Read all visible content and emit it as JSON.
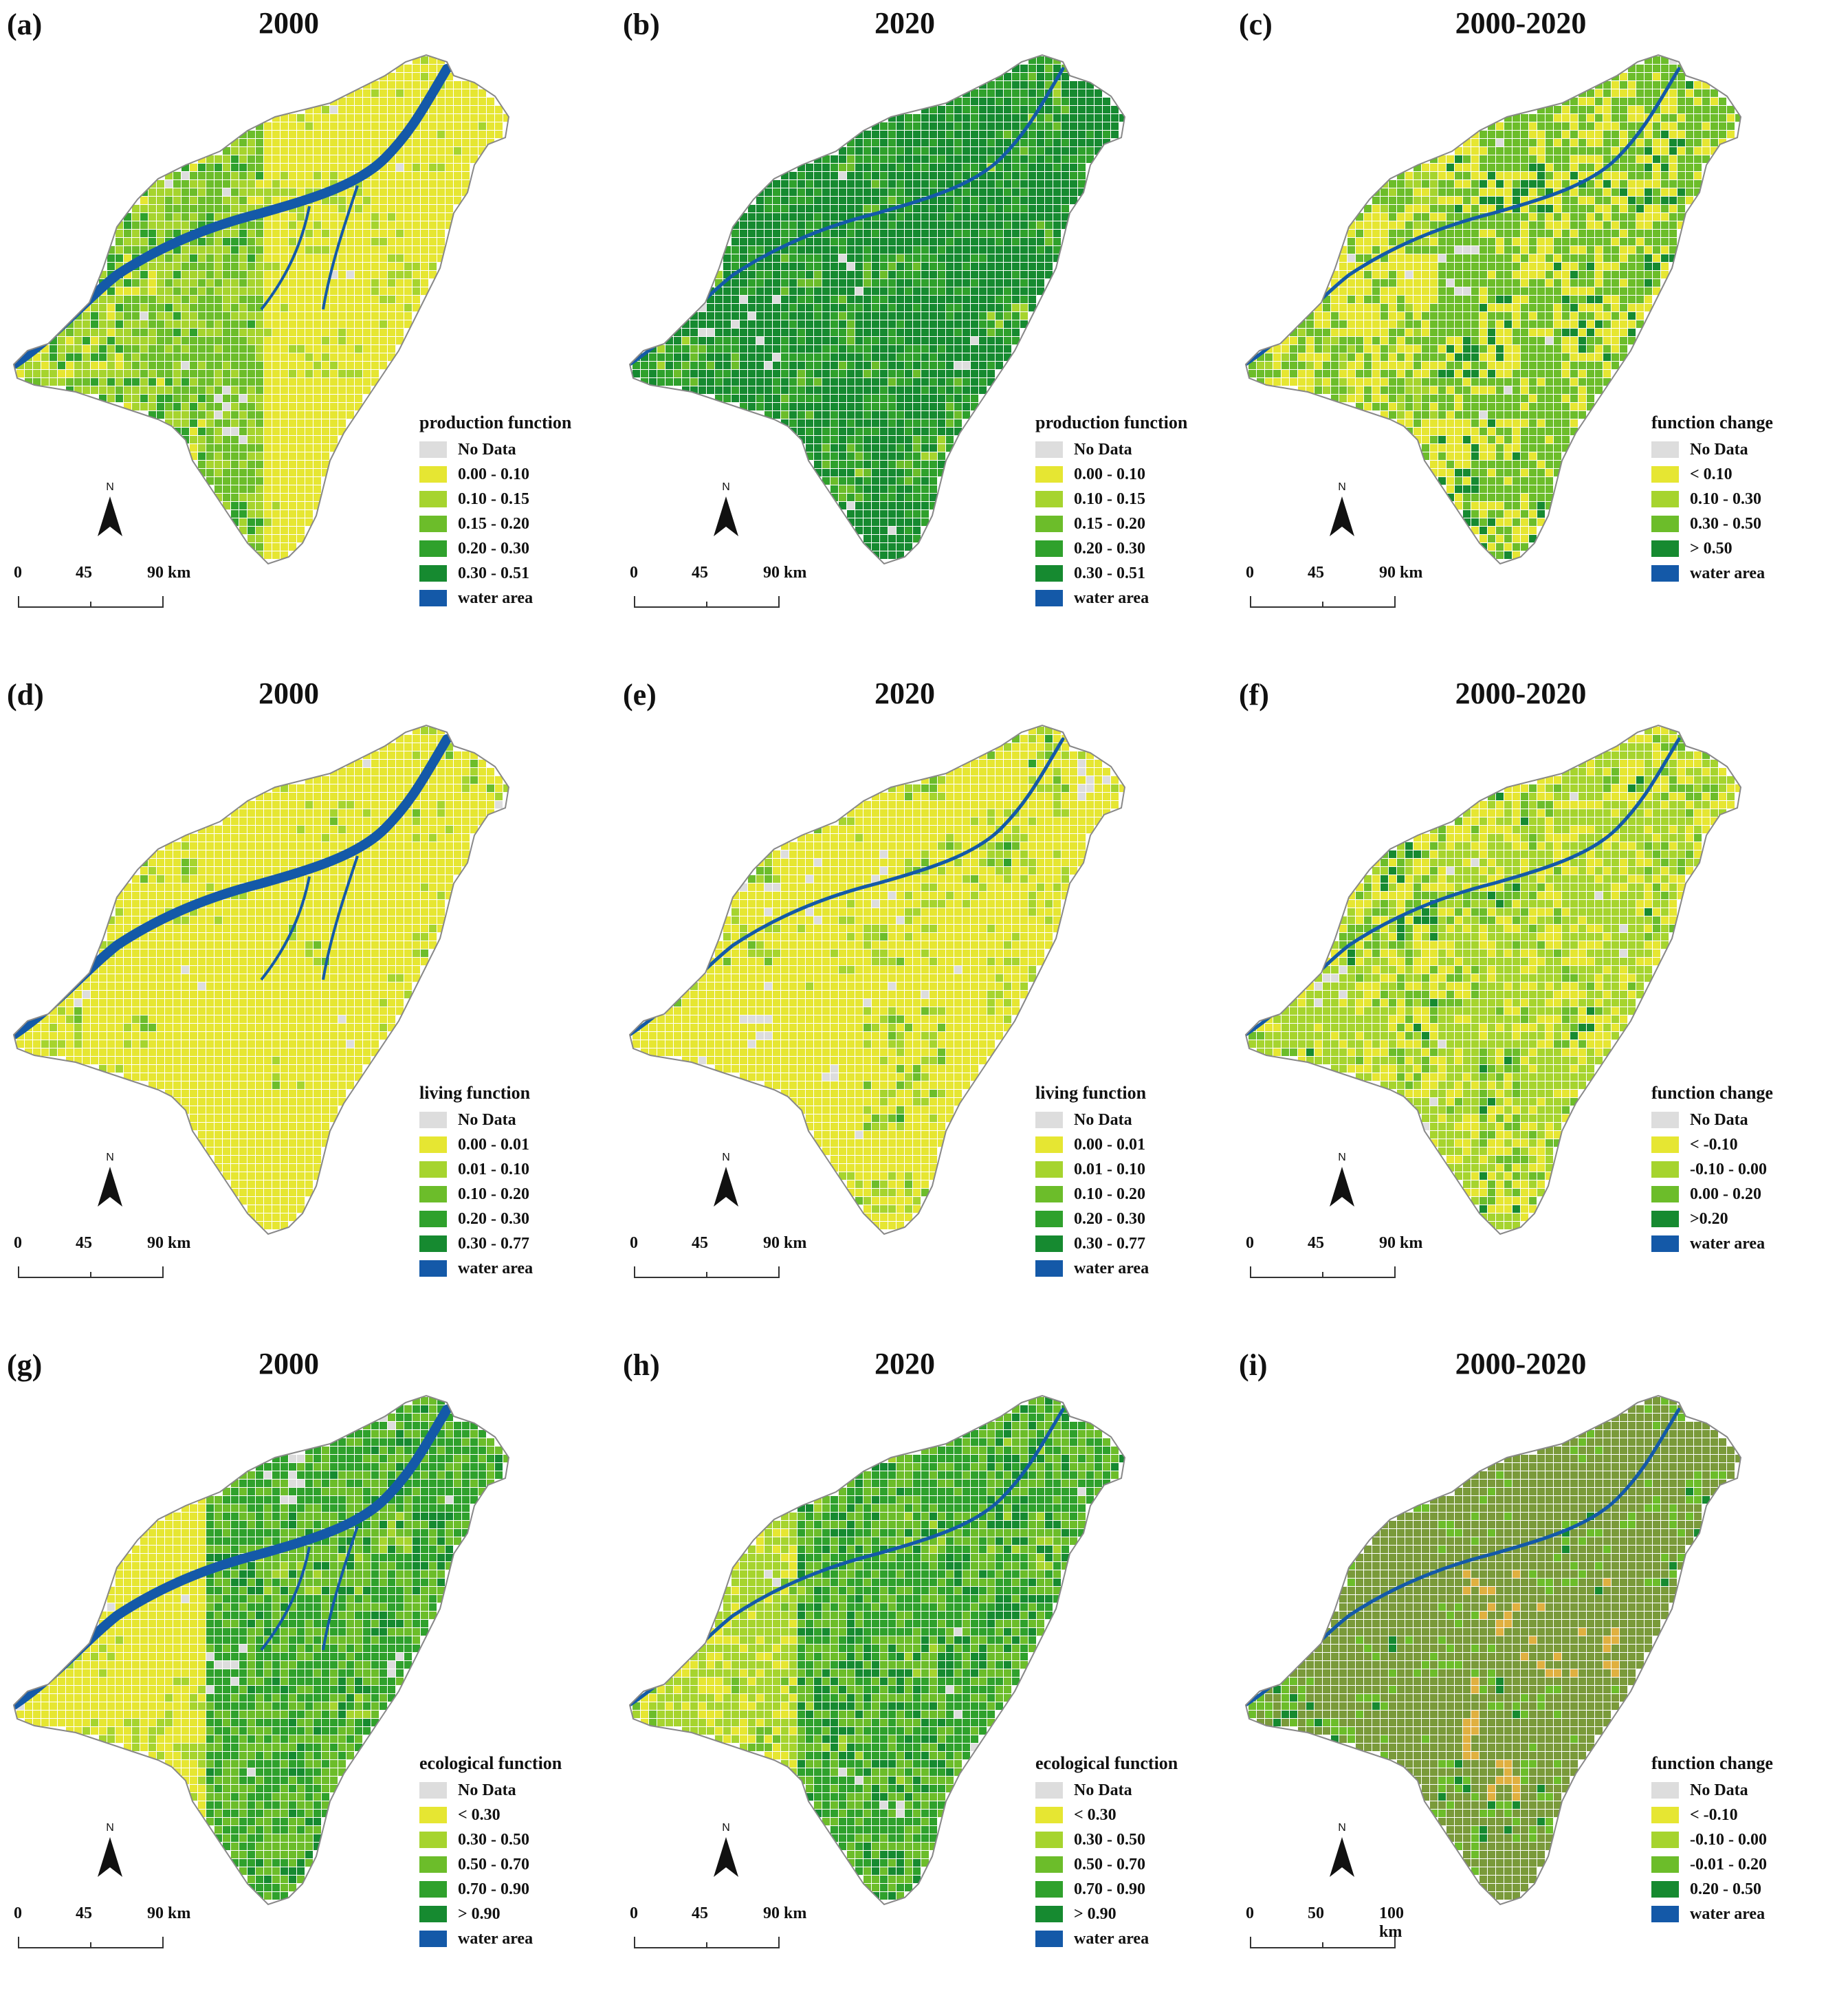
{
  "figure": {
    "panels": [
      {
        "id": "a",
        "label": "(a)",
        "title": "2000",
        "scheme": "prod2000",
        "legend": {
          "title": "production function",
          "items": [
            {
              "label": "No Data",
              "color": "#dddddd"
            },
            {
              "label": "0.00 - 0.10",
              "color": "#e6e632"
            },
            {
              "label": "0.10 - 0.15",
              "color": "#a6d42e"
            },
            {
              "label": "0.15 - 0.20",
              "color": "#6cbd2a"
            },
            {
              "label": "0.20 - 0.30",
              "color": "#2fa12c"
            },
            {
              "label": "0.30 - 0.51",
              "color": "#168a30"
            },
            {
              "label": "water area",
              "color": "#1459a8"
            }
          ]
        },
        "scale": {
          "labels": [
            "0",
            "45",
            "90 km"
          ]
        }
      },
      {
        "id": "b",
        "label": "(b)",
        "title": "2020",
        "scheme": "prod2020",
        "legend": {
          "title": "production function",
          "items": [
            {
              "label": "No Data",
              "color": "#dddddd"
            },
            {
              "label": "0.00 - 0.10",
              "color": "#e6e632"
            },
            {
              "label": "0.10 - 0.15",
              "color": "#a6d42e"
            },
            {
              "label": "0.15 - 0.20",
              "color": "#6cbd2a"
            },
            {
              "label": "0.20 - 0.30",
              "color": "#2fa12c"
            },
            {
              "label": "0.30 - 0.51",
              "color": "#168a30"
            },
            {
              "label": "water area",
              "color": "#1459a8"
            }
          ]
        },
        "scale": {
          "labels": [
            "0",
            "45",
            "90 km"
          ]
        }
      },
      {
        "id": "c",
        "label": "(c)",
        "title": "2000-2020",
        "scheme": "prodchg",
        "legend": {
          "title": "function change",
          "items": [
            {
              "label": "No Data",
              "color": "#dddddd"
            },
            {
              "label": "< 0.10",
              "color": "#e6e632"
            },
            {
              "label": "0.10 - 0.30",
              "color": "#a6d42e"
            },
            {
              "label": "0.30 - 0.50",
              "color": "#6cbd2a"
            },
            {
              "label": "> 0.50",
              "color": "#168a30"
            },
            {
              "label": "water area",
              "color": "#1459a8"
            }
          ]
        },
        "scale": {
          "labels": [
            "0",
            "45",
            "90 km"
          ]
        }
      },
      {
        "id": "d",
        "label": "(d)",
        "title": "2000",
        "scheme": "liv2000",
        "legend": {
          "title": "living function",
          "items": [
            {
              "label": "No Data",
              "color": "#dddddd"
            },
            {
              "label": "0.00 - 0.01",
              "color": "#e6e632"
            },
            {
              "label": "0.01 - 0.10",
              "color": "#a6d42e"
            },
            {
              "label": "0.10 - 0.20",
              "color": "#6cbd2a"
            },
            {
              "label": "0.20 - 0.30",
              "color": "#2fa12c"
            },
            {
              "label": "0.30 - 0.77",
              "color": "#168a30"
            },
            {
              "label": "water area",
              "color": "#1459a8"
            }
          ]
        },
        "scale": {
          "labels": [
            "0",
            "45",
            "90 km"
          ]
        }
      },
      {
        "id": "e",
        "label": "(e)",
        "title": "2020",
        "scheme": "liv2020",
        "legend": {
          "title": "living function",
          "items": [
            {
              "label": "No Data",
              "color": "#dddddd"
            },
            {
              "label": "0.00 - 0.01",
              "color": "#e6e632"
            },
            {
              "label": "0.01 - 0.10",
              "color": "#a6d42e"
            },
            {
              "label": "0.10 - 0.20",
              "color": "#6cbd2a"
            },
            {
              "label": "0.20 - 0.30",
              "color": "#2fa12c"
            },
            {
              "label": "0.30 - 0.77",
              "color": "#168a30"
            },
            {
              "label": "water area",
              "color": "#1459a8"
            }
          ]
        },
        "scale": {
          "labels": [
            "0",
            "45",
            "90 km"
          ]
        }
      },
      {
        "id": "f",
        "label": "(f)",
        "title": "2000-2020",
        "scheme": "livchg",
        "legend": {
          "title": "function change",
          "items": [
            {
              "label": "No Data",
              "color": "#dddddd"
            },
            {
              "label": "< -0.10",
              "color": "#e6e632"
            },
            {
              "label": "-0.10 - 0.00",
              "color": "#a6d42e"
            },
            {
              "label": "0.00 - 0.20",
              "color": "#6cbd2a"
            },
            {
              "label": ">0.20",
              "color": "#168a30"
            },
            {
              "label": "water area",
              "color": "#1459a8"
            }
          ]
        },
        "scale": {
          "labels": [
            "0",
            "45",
            "90 km"
          ]
        }
      },
      {
        "id": "g",
        "label": "(g)",
        "title": "2000",
        "scheme": "eco2000",
        "legend": {
          "title": "ecological function",
          "items": [
            {
              "label": "No Data",
              "color": "#dddddd"
            },
            {
              "label": "< 0.30",
              "color": "#e6e632"
            },
            {
              "label": "0.30 - 0.50",
              "color": "#a6d42e"
            },
            {
              "label": "0.50 - 0.70",
              "color": "#6cbd2a"
            },
            {
              "label": "0.70 - 0.90",
              "color": "#2fa12c"
            },
            {
              "label": "> 0.90",
              "color": "#168a30"
            },
            {
              "label": "water area",
              "color": "#1459a8"
            }
          ]
        },
        "scale": {
          "labels": [
            "0",
            "45",
            "90 km"
          ]
        }
      },
      {
        "id": "h",
        "label": "(h)",
        "title": "2020",
        "scheme": "eco2020",
        "legend": {
          "title": "ecological function",
          "items": [
            {
              "label": "No Data",
              "color": "#dddddd"
            },
            {
              "label": "< 0.30",
              "color": "#e6e632"
            },
            {
              "label": "0.30 - 0.50",
              "color": "#a6d42e"
            },
            {
              "label": "0.50 - 0.70",
              "color": "#6cbd2a"
            },
            {
              "label": "0.70 - 0.90",
              "color": "#2fa12c"
            },
            {
              "label": "> 0.90",
              "color": "#168a30"
            },
            {
              "label": "water area",
              "color": "#1459a8"
            }
          ]
        },
        "scale": {
          "labels": [
            "0",
            "45",
            "90 km"
          ]
        }
      },
      {
        "id": "i",
        "label": "(i)",
        "title": "2000-2020",
        "scheme": "ecochg",
        "legend": {
          "title": "function change",
          "items": [
            {
              "label": "No Data",
              "color": "#dddddd"
            },
            {
              "label": "< -0.10",
              "color": "#e6e632"
            },
            {
              "label": "-0.10 - 0.00",
              "color": "#a6d42e"
            },
            {
              "label": "-0.01 - 0.20",
              "color": "#6cbd2a"
            },
            {
              "label": "0.20 - 0.50",
              "color": "#168a30"
            },
            {
              "label": "water area",
              "color": "#1459a8"
            }
          ]
        },
        "scale": {
          "labels": [
            "0",
            "50",
            "100 km"
          ]
        }
      }
    ],
    "north_label": "N"
  }
}
